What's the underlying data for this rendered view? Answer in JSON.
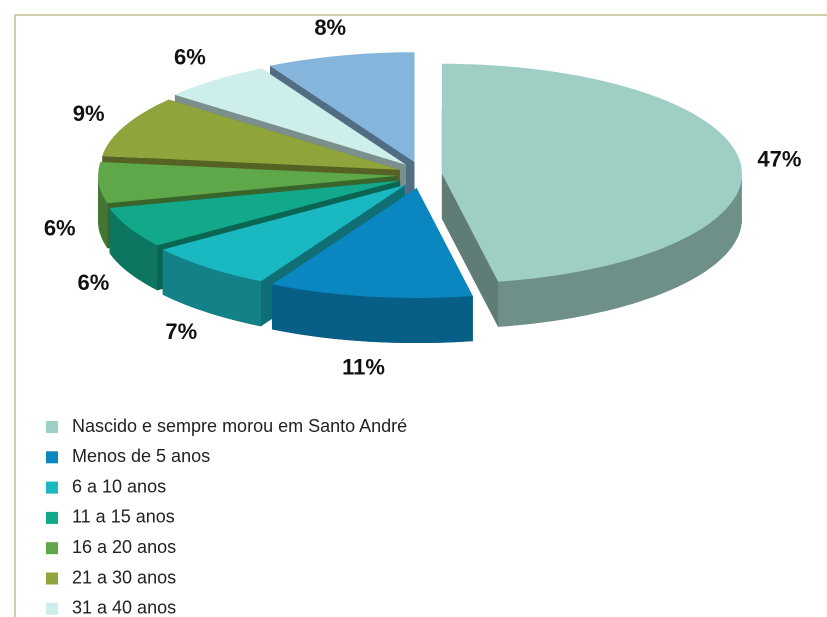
{
  "chart_data": {
    "type": "pie",
    "categories": [
      "Nascido e sempre morou em Santo André",
      "Menos de 5 anos",
      "6 a 10 anos",
      "11 a 15 anos",
      "16 a 20 anos",
      "21 a 30 anos",
      "31 a 40 anos",
      null
    ],
    "values": [
      47,
      11,
      7,
      6,
      6,
      9,
      6,
      8
    ],
    "value_labels": [
      "47%",
      "11%",
      "7%",
      "6%",
      "6%",
      "9%",
      "6%",
      "8%"
    ],
    "colors": [
      "#9ecec4",
      "#0a86c0",
      "#1ab9c2",
      "#12a98a",
      "#5fa84a",
      "#8fa43a",
      "#cdeeea",
      "#86b5dc"
    ],
    "legend": "bottom-left"
  }
}
